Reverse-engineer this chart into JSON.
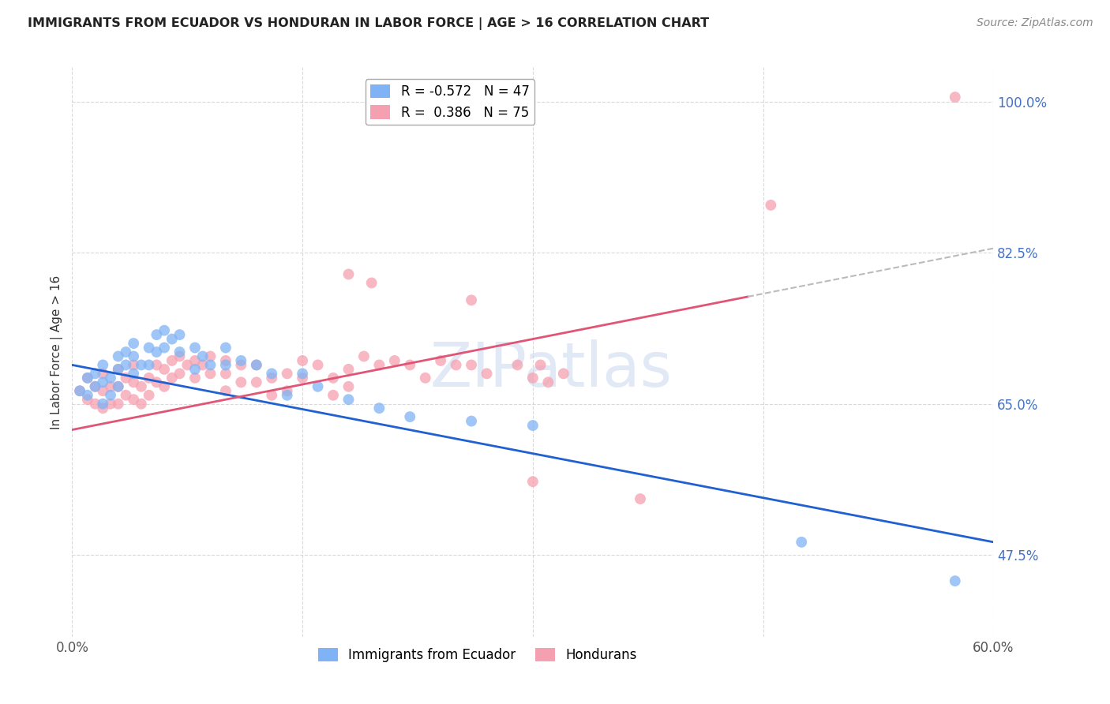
{
  "title": "IMMIGRANTS FROM ECUADOR VS HONDURAN IN LABOR FORCE | AGE > 16 CORRELATION CHART",
  "source": "Source: ZipAtlas.com",
  "ylabel": "In Labor Force | Age > 16",
  "x_min": 0.0,
  "x_max": 0.6,
  "y_min": 0.38,
  "y_max": 1.04,
  "y_ticks": [
    0.475,
    0.65,
    0.825,
    1.0
  ],
  "y_tick_labels": [
    "47.5%",
    "65.0%",
    "82.5%",
    "100.0%"
  ],
  "x_ticks": [
    0.0,
    0.15,
    0.3,
    0.45,
    0.6
  ],
  "x_tick_labels": [
    "0.0%",
    "",
    "",
    "",
    "60.0%"
  ],
  "ecuador_color": "#7fb3f5",
  "honduran_color": "#f5a0b0",
  "ecuador_R": -0.572,
  "ecuador_N": 47,
  "honduran_R": 0.386,
  "honduran_N": 75,
  "trend_blue_x0": 0.0,
  "trend_blue_y0": 0.695,
  "trend_blue_x1": 0.6,
  "trend_blue_y1": 0.49,
  "trend_pink_x0": 0.0,
  "trend_pink_y0": 0.62,
  "trend_pink_x1": 0.6,
  "trend_pink_y1": 0.83,
  "trend_pink_solid_end": 0.44,
  "trend_blue_color": "#2060d0",
  "trend_pink_color": "#e05575",
  "trend_dash_color": "#bbbbbb",
  "watermark_text": "ZIPatlas",
  "ecuador_x": [
    0.005,
    0.01,
    0.01,
    0.015,
    0.015,
    0.02,
    0.02,
    0.02,
    0.025,
    0.025,
    0.03,
    0.03,
    0.03,
    0.035,
    0.035,
    0.04,
    0.04,
    0.04,
    0.045,
    0.05,
    0.05,
    0.055,
    0.055,
    0.06,
    0.06,
    0.065,
    0.07,
    0.07,
    0.08,
    0.08,
    0.085,
    0.09,
    0.1,
    0.1,
    0.11,
    0.12,
    0.13,
    0.14,
    0.15,
    0.16,
    0.18,
    0.2,
    0.22,
    0.26,
    0.3,
    0.475,
    0.575
  ],
  "ecuador_y": [
    0.665,
    0.68,
    0.66,
    0.685,
    0.67,
    0.695,
    0.675,
    0.65,
    0.68,
    0.66,
    0.705,
    0.69,
    0.67,
    0.71,
    0.695,
    0.72,
    0.705,
    0.685,
    0.695,
    0.715,
    0.695,
    0.73,
    0.71,
    0.735,
    0.715,
    0.725,
    0.73,
    0.71,
    0.715,
    0.69,
    0.705,
    0.695,
    0.715,
    0.695,
    0.7,
    0.695,
    0.685,
    0.66,
    0.685,
    0.67,
    0.655,
    0.645,
    0.635,
    0.63,
    0.625,
    0.49,
    0.445
  ],
  "honduran_x": [
    0.005,
    0.01,
    0.01,
    0.015,
    0.015,
    0.02,
    0.02,
    0.02,
    0.025,
    0.025,
    0.03,
    0.03,
    0.03,
    0.035,
    0.035,
    0.04,
    0.04,
    0.04,
    0.045,
    0.045,
    0.05,
    0.05,
    0.055,
    0.055,
    0.06,
    0.06,
    0.065,
    0.065,
    0.07,
    0.07,
    0.075,
    0.08,
    0.08,
    0.085,
    0.09,
    0.09,
    0.1,
    0.1,
    0.1,
    0.11,
    0.11,
    0.12,
    0.12,
    0.13,
    0.13,
    0.14,
    0.14,
    0.15,
    0.15,
    0.16,
    0.17,
    0.17,
    0.18,
    0.18,
    0.19,
    0.2,
    0.21,
    0.22,
    0.23,
    0.24,
    0.25,
    0.26,
    0.27,
    0.29,
    0.3,
    0.305,
    0.31,
    0.32,
    0.18,
    0.195,
    0.26,
    0.3,
    0.37,
    0.455,
    0.575
  ],
  "honduran_y": [
    0.665,
    0.68,
    0.655,
    0.67,
    0.65,
    0.685,
    0.665,
    0.645,
    0.67,
    0.65,
    0.69,
    0.67,
    0.65,
    0.68,
    0.66,
    0.695,
    0.675,
    0.655,
    0.67,
    0.65,
    0.68,
    0.66,
    0.695,
    0.675,
    0.69,
    0.67,
    0.7,
    0.68,
    0.705,
    0.685,
    0.695,
    0.7,
    0.68,
    0.695,
    0.705,
    0.685,
    0.7,
    0.685,
    0.665,
    0.695,
    0.675,
    0.695,
    0.675,
    0.68,
    0.66,
    0.685,
    0.665,
    0.7,
    0.68,
    0.695,
    0.68,
    0.66,
    0.69,
    0.67,
    0.705,
    0.695,
    0.7,
    0.695,
    0.68,
    0.7,
    0.695,
    0.695,
    0.685,
    0.695,
    0.68,
    0.695,
    0.675,
    0.685,
    0.8,
    0.79,
    0.77,
    0.56,
    0.54,
    0.88,
    1.005
  ]
}
